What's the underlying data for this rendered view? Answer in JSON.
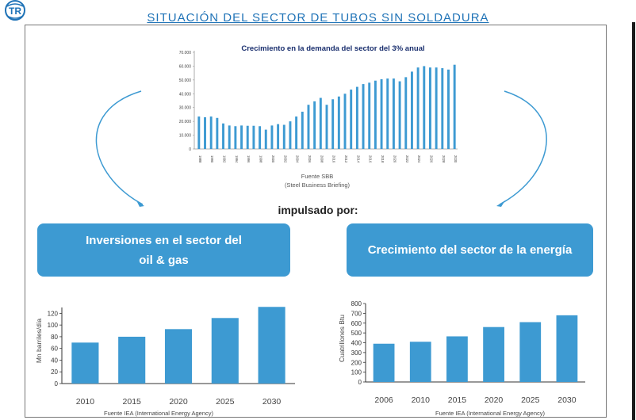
{
  "page": {
    "title": "SITUACIÓN DEL SECTOR DE TUBOS SIN SOLDADURA",
    "connector_text": "impulsado por:",
    "logo_label": "TR"
  },
  "callouts": {
    "oil_gas": "Inversiones en el sector del oil & gas",
    "energy": "Crecimiento del sector de la energía"
  },
  "colors": {
    "bar": "#3d9ad2",
    "title": "#1f73b7",
    "callout_bg": "#3d9ad2",
    "arrow": "#3d9ad2"
  },
  "chart_data": [
    {
      "type": "bar",
      "title": "Crecimiento en la demanda del sector del 3% anual",
      "source": "Fuente SBB",
      "source_detail": "(Steel Business Briefing)",
      "ylim": [
        0,
        70000
      ],
      "yticks": [
        "0",
        "10.000",
        "20.000",
        "30.000",
        "40.000",
        "50.000",
        "60.000",
        "70.000"
      ],
      "ytick_values": [
        0,
        10000,
        20000,
        30000,
        40000,
        50000,
        60000,
        70000
      ],
      "x_tick_labels": [
        "1988",
        "1990",
        "1992",
        "1994",
        "1996",
        "1998",
        "2000",
        "2002",
        "2004",
        "2006",
        "2008",
        "2010",
        "2012",
        "2014",
        "2016",
        "2018",
        "2020",
        "2022",
        "2024",
        "2026",
        "2028",
        "2030"
      ],
      "categories": [
        "1988",
        "1989",
        "1990",
        "1991",
        "1992",
        "1993",
        "1994",
        "1995",
        "1996",
        "1997",
        "1998",
        "1999",
        "2000",
        "2001",
        "2002",
        "2003",
        "2004",
        "2005",
        "2006",
        "2007",
        "2008",
        "2009",
        "2010",
        "2011",
        "2012",
        "2013",
        "2014",
        "2015",
        "2016",
        "2017",
        "2018",
        "2019",
        "2020",
        "2021",
        "2022",
        "2023",
        "2024",
        "2025",
        "2026",
        "2027",
        "2028",
        "2029",
        "2030"
      ],
      "values": [
        23500,
        23000,
        23500,
        22500,
        18500,
        17000,
        16500,
        17000,
        16800,
        16800,
        16500,
        14000,
        17000,
        18000,
        17500,
        20000,
        23500,
        27000,
        32000,
        34500,
        37000,
        32000,
        36000,
        38000,
        40000,
        43000,
        45000,
        47000,
        48000,
        49500,
        50500,
        51000,
        51000,
        49000,
        52000,
        56000,
        59000,
        60000,
        59000,
        59000,
        58500,
        57500,
        61000
      ],
      "grid": false
    },
    {
      "type": "bar",
      "ylabel": "Mn barriles/día",
      "source": "Fuente IEA (International Energy Agency)",
      "categories": [
        "2010",
        "2015",
        "2020",
        "2025",
        "2030"
      ],
      "values": [
        70,
        80,
        93,
        112,
        131
      ],
      "ylim": [
        0,
        130
      ],
      "yticks": [
        "0",
        "20",
        "40",
        "60",
        "80",
        "100",
        "120"
      ],
      "ytick_values": [
        0,
        20,
        40,
        60,
        80,
        100,
        120
      ],
      "grid": false
    },
    {
      "type": "bar",
      "ylabel": "Cuatrillones Btu",
      "source": "Fuente IEA (International Energy Agency)",
      "categories": [
        "2006",
        "2010",
        "2015",
        "2020",
        "2025",
        "2030"
      ],
      "values": [
        390,
        410,
        465,
        560,
        610,
        680
      ],
      "ylim": [
        0,
        800
      ],
      "yticks": [
        "0",
        "100",
        "200",
        "300",
        "400",
        "500",
        "600",
        "700",
        "800"
      ],
      "ytick_values": [
        0,
        100,
        200,
        300,
        400,
        500,
        600,
        700,
        800
      ],
      "grid": false
    }
  ]
}
